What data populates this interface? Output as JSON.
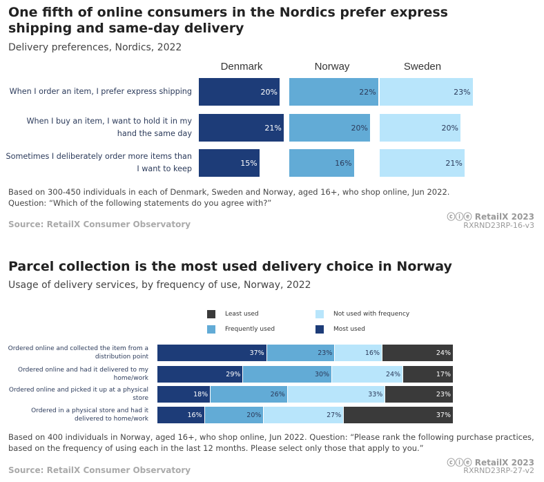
{
  "chart_data": [
    {
      "type": "bar",
      "title": "One fifth of online consumers in the Nordics prefer express shipping and same-day delivery",
      "subtitle": "Delivery preferences, Nordics, 2022",
      "panels": [
        "Denmark",
        "Norway",
        "Sweden"
      ],
      "categories": [
        "When I order an item, I prefer express shipping",
        "When I buy an item, I want to hold it in my hand the same day",
        "Sometimes I deliberately order more items than I want to keep"
      ],
      "series": [
        {
          "name": "Denmark",
          "values": [
            20,
            21,
            15
          ],
          "color": "#1d3c78",
          "label_color": "#ffffff"
        },
        {
          "name": "Norway",
          "values": [
            22,
            20,
            16
          ],
          "color": "#62abd6",
          "label_color": "#2b3a5a"
        },
        {
          "name": "Sweden",
          "values": [
            23,
            20,
            21
          ],
          "color": "#b8e5fb",
          "label_color": "#2b3a5a"
        }
      ],
      "unit": "%",
      "notes": [
        "Based on 300-450 individuals in each of Denmark, Sweden and Norway, aged 16+, who shop online, Jun 2022.",
        "Question: “Which of the following statements do you agree with?”"
      ],
      "source": "Source: RetailX Consumer Observatory",
      "brand": "RetailX 2023",
      "code": "RXRND23RP-16-v3"
    },
    {
      "type": "bar",
      "stacked": true,
      "title": "Parcel collection is the most used delivery choice in Norway",
      "subtitle": "Usage of delivery services, by frequency of use, Norway, 2022",
      "categories": [
        "Ordered online and collected the item from a distribution point",
        "Ordered online and had it delivered to my home/work",
        "Ordered online and picked it up at a physical store",
        "Ordered in a physical store and had it delivered to home/work"
      ],
      "series": [
        {
          "name": "Most used",
          "values": [
            37,
            29,
            18,
            16
          ],
          "color": "#1d3c78",
          "label_color": "#ffffff"
        },
        {
          "name": "Frequently used",
          "values": [
            23,
            30,
            26,
            20
          ],
          "color": "#62abd6",
          "label_color": "#2b3a5a"
        },
        {
          "name": "Not used with frequency",
          "values": [
            16,
            24,
            33,
            27
          ],
          "color": "#b8e5fb",
          "label_color": "#2b3a5a"
        },
        {
          "name": "Least used",
          "values": [
            24,
            17,
            23,
            37
          ],
          "color": "#3a3a3a",
          "label_color": "#ffffff"
        }
      ],
      "legend": [
        "Least used",
        "Not used with frequency",
        "Frequently used",
        "Most used"
      ],
      "unit": "%",
      "notes": [
        "Based on 400 individuals in Norway, aged 16+, who shop online, Jun 2022. Question: “Please rank the following purchase practices, based on the frequency of using each in the last 12 months. Please select only those that apply to you.”"
      ],
      "source": "Source: RetailX Consumer Observatory",
      "brand": "RetailX 2023",
      "code": "RXRND23RP-27-v2"
    }
  ]
}
